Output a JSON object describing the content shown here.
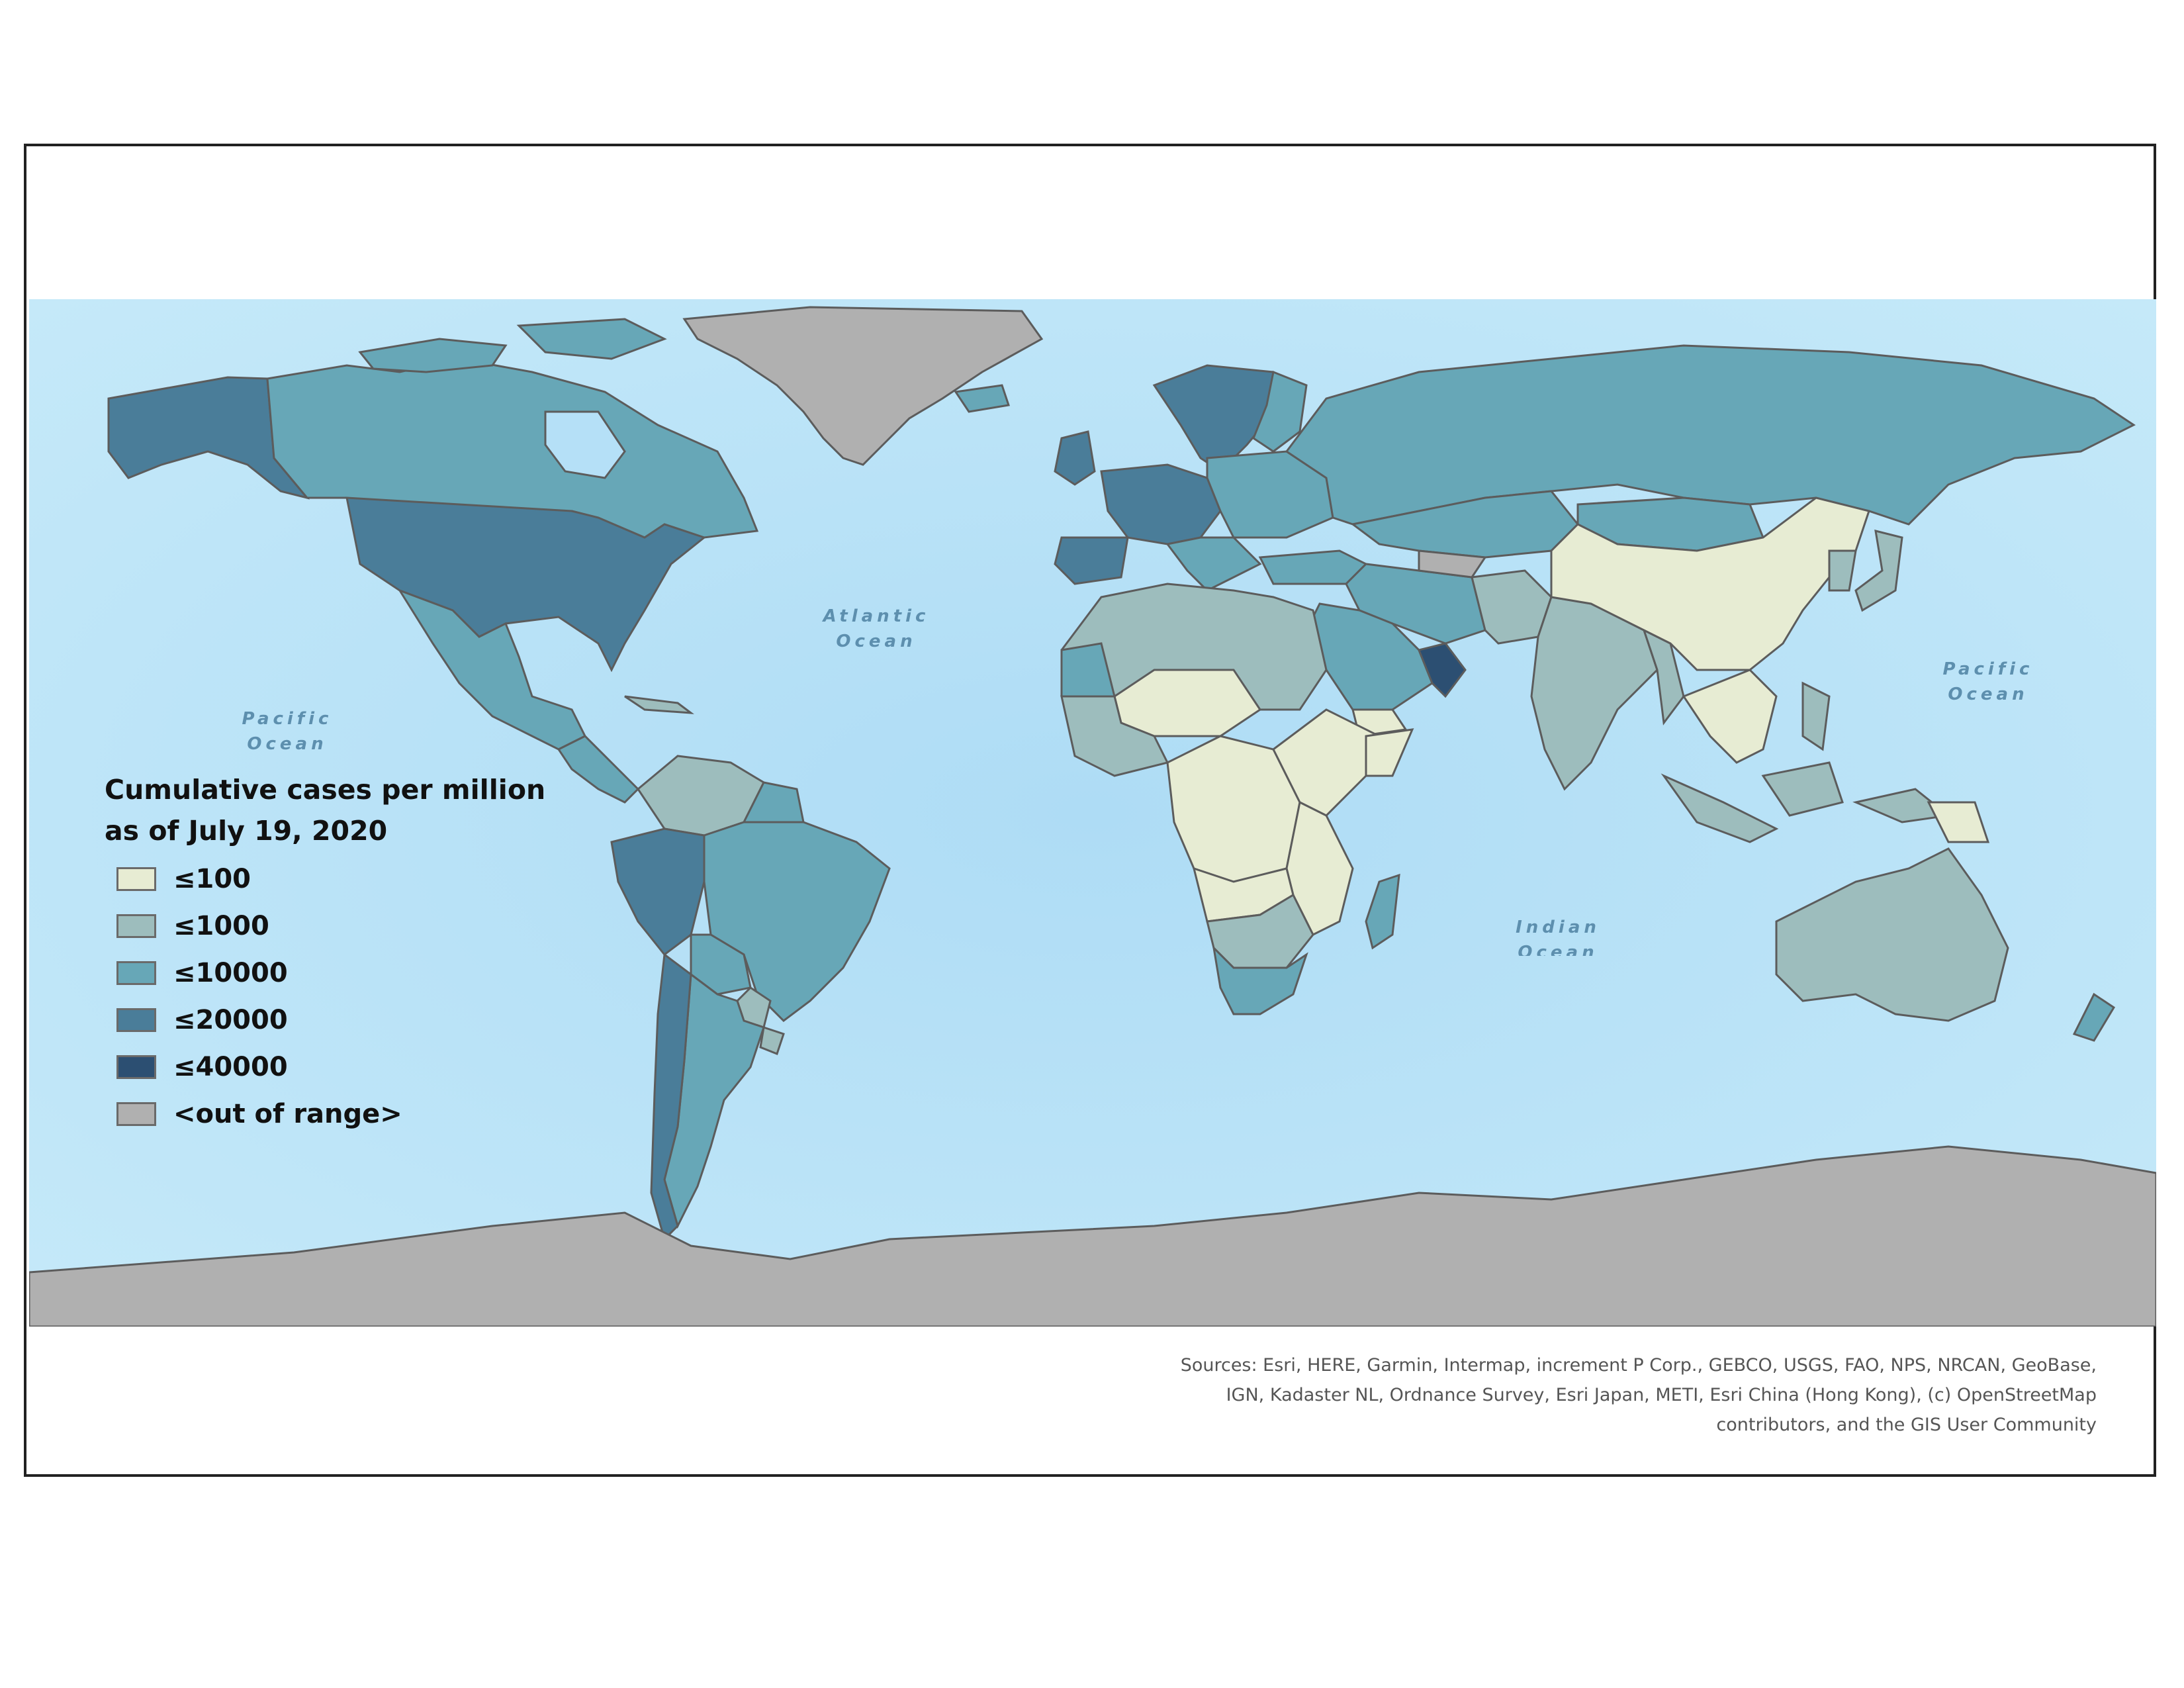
{
  "legend": {
    "title_line1": "Cumulative cases per million",
    "title_line2": "as of July 19, 2020",
    "classes": [
      {
        "label": "≤100",
        "color": "#e7ecd3"
      },
      {
        "label": "≤1000",
        "color": "#9dbdbd"
      },
      {
        "label": "≤10000",
        "color": "#67a7b7"
      },
      {
        "label": "≤20000",
        "color": "#4a7d99"
      },
      {
        "label": "≤40000",
        "color": "#2c4f72"
      },
      {
        "label": "<out of range>",
        "color": "#b0b0b0"
      }
    ]
  },
  "ocean_labels": {
    "atlantic": "Atlantic\nOcean",
    "pacific_west": "Pacific\nOcean",
    "pacific_east": "Pacific\nOcean",
    "indian": "Indian\nOcean"
  },
  "sources": {
    "line1": "Sources: Esri, HERE, Garmin, Intermap, increment P Corp., GEBCO, USGS, FAO, NPS, NRCAN, GeoBase,",
    "line2": "IGN, Kadaster NL, Ordnance Survey, Esri Japan, METI, Esri China (Hong Kong), (c) OpenStreetMap",
    "line3": "contributors, and the GIS User Community"
  },
  "colors": {
    "ocean": "#b5e0f7",
    "ocean_light": "#d6f0fb",
    "border": "#5c5c5c"
  }
}
